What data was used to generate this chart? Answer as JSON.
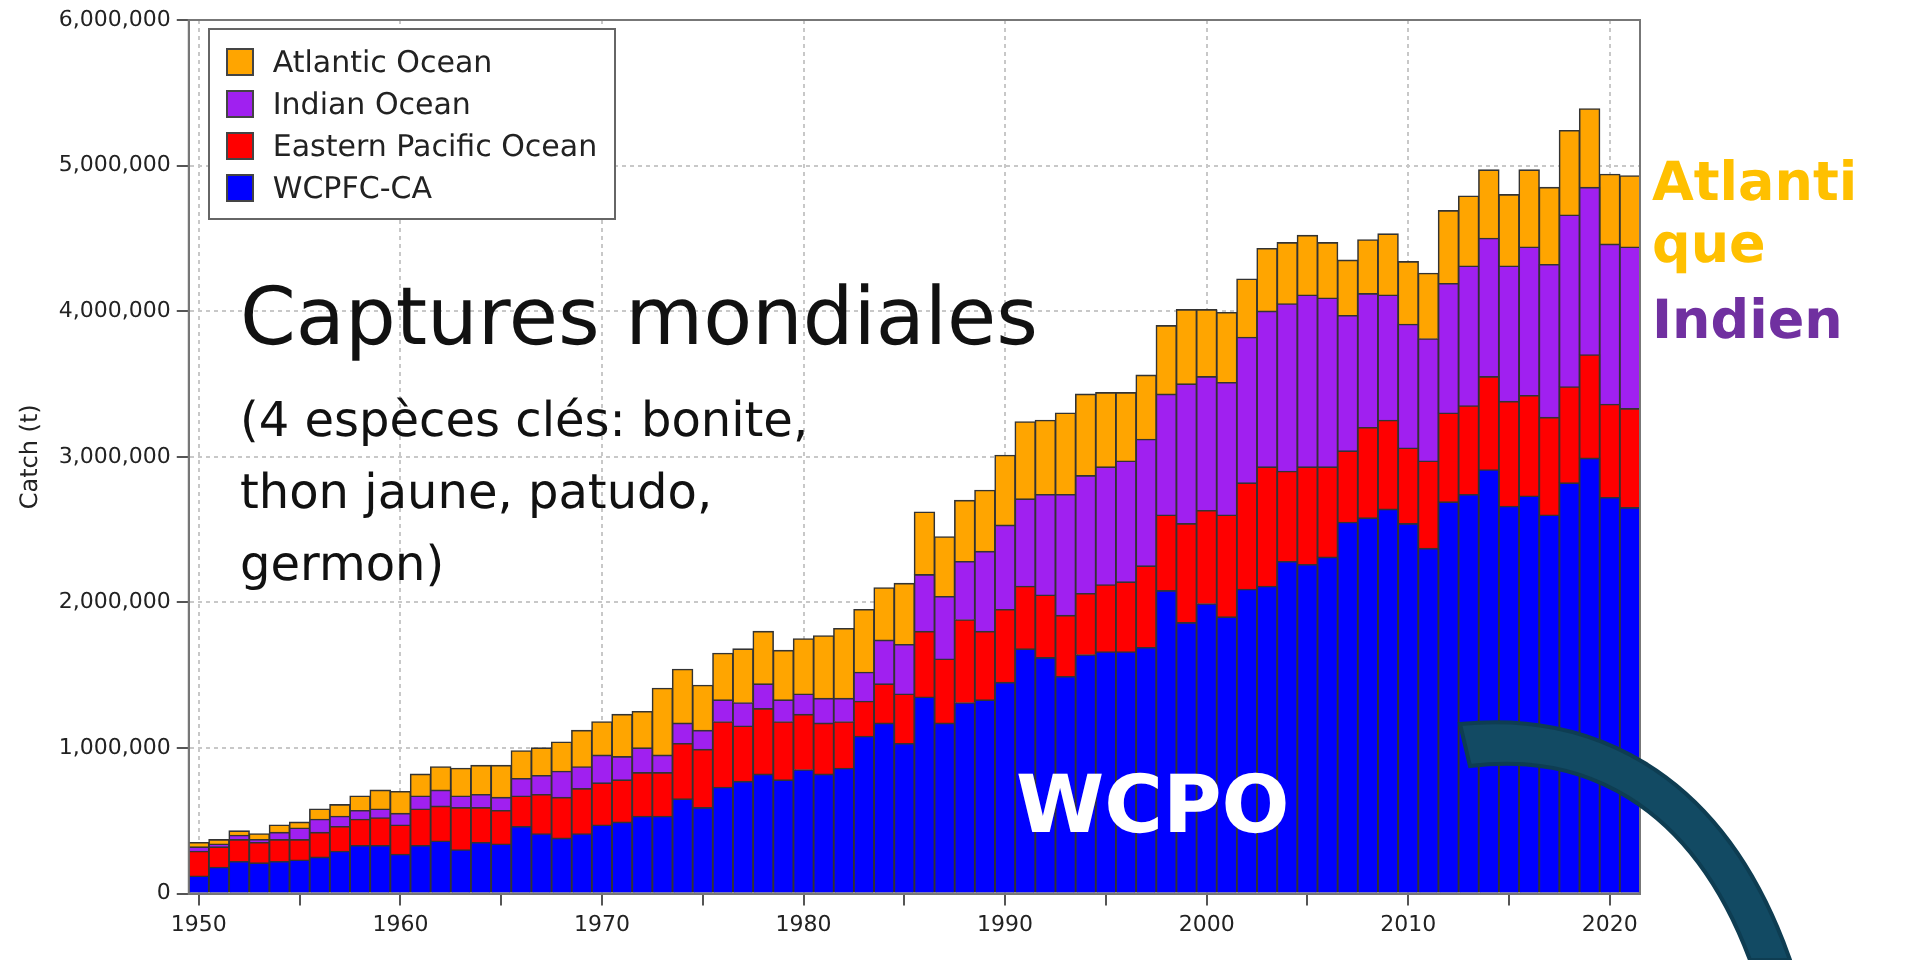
{
  "chart_data": {
    "type": "bar",
    "stacked": true,
    "ylabel": "Catch (t)",
    "categories": [
      "1950",
      null,
      null,
      null,
      null,
      null,
      null,
      null,
      null,
      null,
      "1960",
      null,
      null,
      null,
      null,
      null,
      null,
      null,
      null,
      null,
      "1970",
      null,
      null,
      null,
      null,
      null,
      null,
      null,
      null,
      null,
      "1980",
      null,
      null,
      null,
      null,
      null,
      null,
      null,
      null,
      null,
      "1990",
      null,
      null,
      null,
      null,
      null,
      null,
      null,
      null,
      null,
      "2000",
      null,
      null,
      null,
      null,
      null,
      null,
      null,
      null,
      null,
      "2010",
      null,
      null,
      null,
      null,
      null,
      null,
      null,
      null,
      null,
      "2020",
      null
    ],
    "series": [
      {
        "name": "WCPFC-CA",
        "color": "#0000ff",
        "values": [
          120000,
          180000,
          220000,
          210000,
          220000,
          230000,
          250000,
          290000,
          330000,
          330000,
          270000,
          330000,
          360000,
          300000,
          350000,
          340000,
          460000,
          410000,
          380000,
          410000,
          470000,
          490000,
          530000,
          530000,
          650000,
          590000,
          730000,
          770000,
          820000,
          780000,
          850000,
          820000,
          860000,
          1080000,
          1170000,
          1030000,
          1350000,
          1170000,
          1310000,
          1330000,
          1450000,
          1680000,
          1620000,
          1490000,
          1640000,
          1660000,
          1660000,
          1690000,
          2080000,
          1860000,
          1990000,
          1900000,
          2090000,
          2110000,
          2280000,
          2260000,
          2310000,
          2550000,
          2580000,
          2640000,
          2540000,
          2370000,
          2690000,
          2740000,
          2910000,
          2660000,
          2730000,
          2600000,
          2820000,
          2990000,
          2720000,
          2650000
        ]
      },
      {
        "name": "Eastern Pacific Ocean",
        "color": "#ff0000",
        "values": [
          170000,
          140000,
          150000,
          140000,
          150000,
          140000,
          170000,
          170000,
          180000,
          190000,
          200000,
          250000,
          240000,
          290000,
          240000,
          230000,
          210000,
          270000,
          280000,
          310000,
          290000,
          290000,
          300000,
          300000,
          380000,
          400000,
          450000,
          380000,
          450000,
          400000,
          380000,
          350000,
          320000,
          240000,
          270000,
          340000,
          450000,
          440000,
          570000,
          470000,
          500000,
          430000,
          430000,
          420000,
          420000,
          460000,
          480000,
          560000,
          520000,
          680000,
          640000,
          700000,
          730000,
          820000,
          620000,
          670000,
          620000,
          490000,
          620000,
          610000,
          520000,
          600000,
          610000,
          610000,
          640000,
          720000,
          690000,
          670000,
          660000,
          710000,
          640000,
          680000
        ]
      },
      {
        "name": "Indian Ocean",
        "color": "#a020f0",
        "values": [
          30000,
          20000,
          30000,
          20000,
          50000,
          80000,
          90000,
          70000,
          60000,
          60000,
          80000,
          90000,
          110000,
          80000,
          90000,
          90000,
          120000,
          130000,
          180000,
          150000,
          190000,
          160000,
          170000,
          120000,
          140000,
          130000,
          150000,
          160000,
          170000,
          150000,
          140000,
          170000,
          160000,
          200000,
          300000,
          340000,
          390000,
          430000,
          400000,
          550000,
          580000,
          600000,
          690000,
          830000,
          810000,
          810000,
          830000,
          870000,
          830000,
          960000,
          920000,
          910000,
          1000000,
          1070000,
          1150000,
          1180000,
          1160000,
          930000,
          920000,
          860000,
          850000,
          840000,
          890000,
          960000,
          950000,
          930000,
          1020000,
          1050000,
          1180000,
          1150000,
          1100000,
          1110000
        ]
      },
      {
        "name": "Atlantic Ocean",
        "color": "#ffa500",
        "values": [
          30000,
          30000,
          30000,
          40000,
          50000,
          40000,
          70000,
          80000,
          100000,
          130000,
          150000,
          150000,
          160000,
          190000,
          200000,
          220000,
          190000,
          190000,
          200000,
          250000,
          230000,
          290000,
          250000,
          460000,
          370000,
          310000,
          320000,
          370000,
          360000,
          340000,
          380000,
          430000,
          480000,
          430000,
          360000,
          420000,
          430000,
          410000,
          420000,
          420000,
          480000,
          530000,
          510000,
          560000,
          560000,
          510000,
          470000,
          440000,
          470000,
          510000,
          460000,
          480000,
          400000,
          430000,
          420000,
          410000,
          380000,
          380000,
          370000,
          420000,
          430000,
          450000,
          500000,
          480000,
          470000,
          490000,
          530000,
          530000,
          580000,
          540000,
          480000,
          490000
        ]
      }
    ],
    "ylim": [
      0,
      6000000
    ],
    "yticks": [
      0,
      {
        "value": 1000000,
        "label": "1,000,000"
      },
      {
        "value": 2000000,
        "label": "2,000,000"
      },
      {
        "value": 3000000,
        "label": "3,000,000"
      },
      {
        "value": 4000000,
        "label": "4,000,000"
      },
      {
        "value": 5000000,
        "label": "5,000,000"
      },
      {
        "value": 6000000,
        "label": "6,000,000"
      }
    ],
    "grid": true,
    "legend": "top left",
    "annotations": [
      "Captures mondiales",
      "(4 espèces clés: bonite, thon jaune, patudo, germon)",
      "WCPO",
      "Atlantique",
      "Indien"
    ]
  }
}
